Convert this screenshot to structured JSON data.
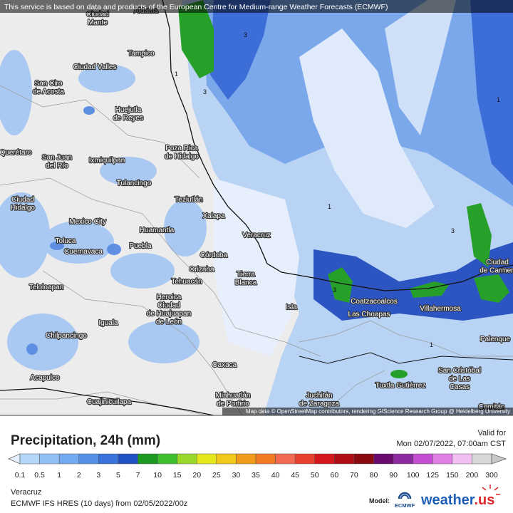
{
  "header": {
    "notice": "This service is based on data and products of the European Centre for Medium-range Weather Forecasts (ECMWF)"
  },
  "map": {
    "places": [
      {
        "lines": [
          "Ciudad",
          "Mante"
        ]
      },
      {
        "lines": [
          "Aldama"
        ]
      },
      {
        "lines": [
          "Tampico"
        ]
      },
      {
        "lines": [
          "Ciudad Valles"
        ]
      },
      {
        "lines": [
          "San Ciro",
          "de Acosta"
        ]
      },
      {
        "lines": [
          "Huejutla",
          "de Reyes"
        ]
      },
      {
        "lines": [
          "Poza Rica",
          "de Hidalgo"
        ]
      },
      {
        "lines": [
          "Ixmiquilpan"
        ]
      },
      {
        "lines": [
          "San Juan",
          "del Río"
        ]
      },
      {
        "lines": [
          "Querétaro"
        ]
      },
      {
        "lines": [
          "Tulancingo"
        ]
      },
      {
        "lines": [
          "Teziutlán"
        ]
      },
      {
        "lines": [
          "Ciudad",
          "Hidalgo"
        ]
      },
      {
        "lines": [
          "Xalapa"
        ]
      },
      {
        "lines": [
          "Mexico City"
        ]
      },
      {
        "lines": [
          "Huamantla"
        ]
      },
      {
        "lines": [
          "Veracruz"
        ]
      },
      {
        "lines": [
          "Toluca"
        ]
      },
      {
        "lines": [
          "Cuernavaca"
        ]
      },
      {
        "lines": [
          "Puebla"
        ]
      },
      {
        "lines": [
          "Córdoba"
        ]
      },
      {
        "lines": [
          "Orizaba"
        ]
      },
      {
        "lines": [
          "Tierra",
          "Blanca"
        ]
      },
      {
        "lines": [
          "Tehuacán"
        ]
      },
      {
        "lines": [
          "Teloloapan"
        ]
      },
      {
        "lines": [
          "Heroica",
          "Ciudad",
          "de Huajuapan",
          "de León"
        ]
      },
      {
        "lines": [
          "Isla"
        ]
      },
      {
        "lines": [
          "Coatzacoalcos"
        ]
      },
      {
        "lines": [
          "Las Choapas"
        ]
      },
      {
        "lines": [
          "Villahermosa"
        ]
      },
      {
        "lines": [
          "Iguala"
        ]
      },
      {
        "lines": [
          "Palenque"
        ]
      },
      {
        "lines": [
          "Chilpancingo"
        ]
      },
      {
        "lines": [
          "Oaxaca"
        ]
      },
      {
        "lines": [
          "San Cristóbal",
          "de Las",
          "Casas"
        ]
      },
      {
        "lines": [
          "Acapulco"
        ]
      },
      {
        "lines": [
          "Tuxtla Gutiérrez"
        ]
      },
      {
        "lines": [
          "Juchitán",
          "de Zaragoza"
        ]
      },
      {
        "lines": [
          "Miahuatlán",
          "de Porfirio"
        ]
      },
      {
        "lines": [
          "Cuajinicuilapa"
        ]
      },
      {
        "lines": [
          "Ciudad",
          "de Carmen"
        ]
      },
      {
        "lines": [
          "Comitán"
        ]
      }
    ],
    "contour_labels": [
      "3",
      "1",
      "3",
      "1",
      "3",
      "1",
      "3",
      "1"
    ],
    "attribution": "Map data © OpenStreetMap contributors, rendering GIScience Research Group @ Heidelberg University"
  },
  "legend": {
    "title": "Precipitation, 24h (mm)",
    "valid_label": "Valid for",
    "valid_time": "Mon 02/07/2022, 07:00am CST",
    "levels": [
      0.1,
      0.5,
      1,
      2,
      3,
      5,
      7,
      10,
      15,
      20,
      25,
      30,
      35,
      40,
      45,
      50,
      60,
      70,
      80,
      90,
      100,
      125,
      150,
      200,
      300
    ],
    "colors": [
      "#b4d6fa",
      "#92c0f6",
      "#74aaf1",
      "#5590e8",
      "#3a73dc",
      "#2352c4",
      "#1b9a22",
      "#3cbf2c",
      "#9bd62a",
      "#e6e81e",
      "#f2c81a",
      "#f29b1a",
      "#f07a22",
      "#f26a52",
      "#e8402e",
      "#d4161e",
      "#b00c16",
      "#8a0a10",
      "#6a0a6e",
      "#8e2aa0",
      "#c44ed2",
      "#e07ee6",
      "#f2bff2",
      "#d8d8d8"
    ],
    "under_color": "#e3effc",
    "over_color": "#c8c8c8"
  },
  "footer": {
    "region": "Veracruz",
    "run": "ECMWF IFS HRES (10 days) from 02/05/2022/00z",
    "model_label": "Model:",
    "model_logo_text": "ECMWF",
    "brand": "weather",
    "brand_tld": ".us"
  }
}
